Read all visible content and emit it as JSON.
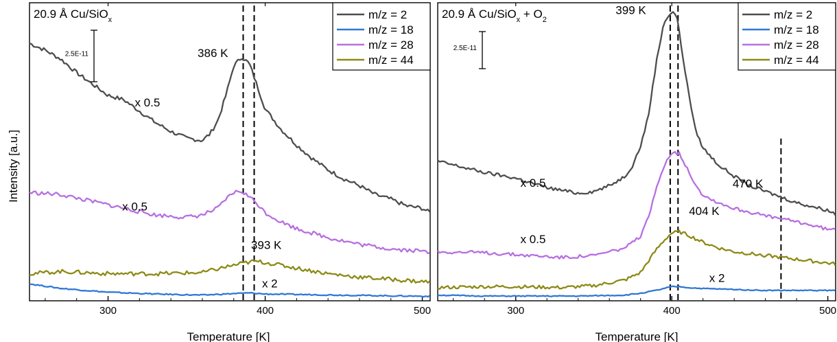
{
  "figure": {
    "ylabel": "Intensity [a.u.]",
    "xlabel": "Temperature [K]"
  },
  "legend_entries": [
    "m/z = 2",
    "m/z = 18",
    "m/z = 28",
    "m/z = 44"
  ],
  "colors": {
    "m2": "#4d4d4d",
    "m18": "#2f78d6",
    "m28": "#b76fe0",
    "m44": "#8c8a14"
  },
  "chart_data": [
    {
      "type": "line",
      "title": "20.9 Å Cu/SiO",
      "title_sub": "x",
      "xlabel": "Temperature [K]",
      "ylabel": "Intensity [a.u.]",
      "xlim": [
        250,
        505
      ],
      "xticks": [
        300,
        400,
        500
      ],
      "yticks_shown": false,
      "legend": "top-right",
      "scale_bar": "2.5E-11",
      "series": [
        {
          "name": "m/z = 2",
          "color": "#4d4d4d",
          "x": [
            250,
            260,
            270,
            280,
            290,
            300,
            310,
            320,
            330,
            340,
            350,
            360,
            365,
            370,
            375,
            380,
            385,
            390,
            395,
            400,
            410,
            420,
            430,
            440,
            450,
            460,
            470,
            480,
            490,
            500,
            505
          ],
          "y": [
            8.6,
            8.3,
            7.9,
            7.3,
            6.8,
            6.3,
            6.1,
            5.6,
            5.1,
            4.7,
            4.4,
            4.3,
            4.6,
            5.2,
            6.3,
            7.6,
            8.0,
            7.7,
            6.7,
            5.7,
            4.8,
            4.1,
            3.5,
            3.0,
            2.6,
            2.3,
            1.9,
            1.7,
            1.4,
            1.3,
            1.1
          ]
        },
        {
          "name": "m/z = 18",
          "color": "#2f78d6",
          "x": [
            250,
            270,
            300,
            330,
            360,
            380,
            390,
            400,
            420,
            450,
            480,
            505
          ],
          "y": [
            -2.05,
            -2.25,
            -2.42,
            -2.5,
            -2.55,
            -2.48,
            -2.45,
            -2.5,
            -2.52,
            -2.55,
            -2.58,
            -2.6
          ]
        },
        {
          "name": "m/z = 28",
          "color": "#b76fe0",
          "x": [
            250,
            270,
            290,
            310,
            330,
            350,
            360,
            370,
            375,
            380,
            385,
            390,
            395,
            400,
            410,
            420,
            440,
            460,
            480,
            500,
            505
          ],
          "y": [
            2.0,
            1.9,
            1.6,
            1.3,
            1.0,
            0.9,
            1.0,
            1.3,
            1.7,
            2.0,
            2.05,
            1.8,
            1.5,
            1.1,
            0.7,
            0.4,
            0.0,
            -0.3,
            -0.5,
            -0.6,
            -0.65
          ]
        },
        {
          "name": "m/z = 44",
          "color": "#8c8a14",
          "x": [
            250,
            270,
            300,
            330,
            360,
            375,
            385,
            393,
            400,
            420,
            440,
            460,
            480,
            500,
            505
          ],
          "y": [
            -1.6,
            -1.5,
            -1.6,
            -1.6,
            -1.55,
            -1.3,
            -1.15,
            -1.05,
            -1.1,
            -1.35,
            -1.6,
            -1.75,
            -1.85,
            -1.95,
            -1.95
          ]
        }
      ],
      "vlines": [
        386,
        393
      ],
      "annotations": [
        {
          "text": "386 K",
          "x": 357,
          "y": 8.0
        },
        {
          "text": "393 K",
          "x": 391,
          "y": -0.5
        },
        {
          "text": "x 0.5",
          "x": 317,
          "y": 5.8
        },
        {
          "text": "x 0.5",
          "x": 309,
          "y": 1.2
        },
        {
          "text": "x 2",
          "x": 398,
          "y": -2.2
        }
      ]
    },
    {
      "type": "line",
      "title": "20.9 Å Cu/SiO",
      "title_sub": "x",
      "title_suffix": " + O",
      "title_suffix_sub": "2",
      "xlabel": "Temperature [K]",
      "ylabel": "",
      "xlim": [
        250,
        505
      ],
      "xticks": [
        300,
        400,
        500
      ],
      "yticks_shown": false,
      "legend": "top-right",
      "scale_bar": "2.5E-11",
      "series": [
        {
          "name": "m/z = 2",
          "color": "#4d4d4d",
          "x": [
            250,
            260,
            280,
            300,
            320,
            340,
            350,
            360,
            370,
            375,
            380,
            385,
            390,
            395,
            400,
            403,
            405,
            410,
            415,
            420,
            430,
            440,
            450,
            460,
            470,
            480,
            490,
            500,
            505
          ],
          "y": [
            3.8,
            3.6,
            3.2,
            2.9,
            2.4,
            2.1,
            2.2,
            2.5,
            3.0,
            3.6,
            4.6,
            6.2,
            9.0,
            11.2,
            11.7,
            11.6,
            10.5,
            7.8,
            5.5,
            4.5,
            3.6,
            3.0,
            2.5,
            2.2,
            1.9,
            1.6,
            1.4,
            1.2,
            1.0
          ]
        },
        {
          "name": "m/z = 18",
          "color": "#2f78d6",
          "x": [
            250,
            280,
            300,
            340,
            370,
            380,
            390,
            395,
            400,
            405,
            410,
            420,
            440,
            460,
            480,
            505
          ],
          "y": [
            -3.3,
            -3.35,
            -3.35,
            -3.35,
            -3.3,
            -3.2,
            -3.05,
            -2.95,
            -2.85,
            -2.85,
            -2.9,
            -2.95,
            -3.0,
            -3.05,
            -3.05,
            -3.05
          ]
        },
        {
          "name": "m/z = 28",
          "color": "#b76fe0",
          "x": [
            250,
            280,
            300,
            330,
            350,
            370,
            380,
            385,
            390,
            395,
            400,
            405,
            410,
            415,
            420,
            430,
            440,
            460,
            480,
            500,
            505
          ],
          "y": [
            -1.0,
            -1.05,
            -1.15,
            -1.3,
            -1.2,
            -0.8,
            -0.2,
            0.8,
            2.3,
            3.6,
            4.3,
            4.2,
            3.4,
            2.6,
            2.0,
            1.6,
            1.3,
            0.9,
            0.6,
            0.2,
            0.15
          ]
        },
        {
          "name": "m/z = 44",
          "color": "#8c8a14",
          "x": [
            250,
            280,
            300,
            330,
            350,
            370,
            380,
            385,
            390,
            395,
            400,
            405,
            410,
            415,
            420,
            430,
            440,
            460,
            480,
            500,
            505
          ],
          "y": [
            -2.9,
            -2.85,
            -2.85,
            -2.9,
            -2.8,
            -2.5,
            -2.1,
            -1.5,
            -0.9,
            -0.4,
            0.0,
            0.05,
            -0.1,
            -0.3,
            -0.5,
            -0.8,
            -1.0,
            -1.2,
            -1.4,
            -1.6,
            -1.65
          ]
        }
      ],
      "vlines": [
        399,
        404,
        470
      ],
      "annotations": [
        {
          "text": "399 K",
          "x": 364,
          "y": 11.6
        },
        {
          "text": "404 K",
          "x": 411,
          "y": 0.95
        },
        {
          "text": "470 K",
          "x": 439,
          "y": 2.4
        },
        {
          "text": "x 0.5",
          "x": 303,
          "y": 2.45
        },
        {
          "text": "x 0.5",
          "x": 303,
          "y": -0.55
        },
        {
          "text": "x 2",
          "x": 424,
          "y": -2.6
        }
      ]
    }
  ]
}
